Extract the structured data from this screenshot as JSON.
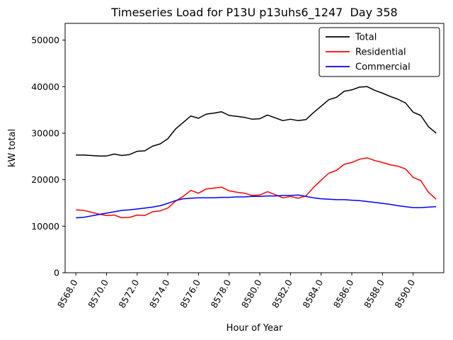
{
  "chart_data": {
    "type": "line",
    "title": "Timeseries Load for P13U p13uhs6_1247  Day 358",
    "xlabel": "Hour of Year",
    "ylabel": "kW total",
    "grid": false,
    "legend_position": "upper right",
    "xlim": [
      8567.3,
      8592.0
    ],
    "ylim": [
      0,
      53600
    ],
    "xticks": [
      8568,
      8570,
      8572,
      8574,
      8576,
      8578,
      8580,
      8582,
      8584,
      8586,
      8588,
      8590
    ],
    "xtick_labels": [
      "8568.0",
      "8570.0",
      "8572.0",
      "8574.0",
      "8576.0",
      "8578.0",
      "8580.0",
      "8582.0",
      "8584.0",
      "8586.0",
      "8588.0",
      "8590.0"
    ],
    "yticks": [
      0,
      10000,
      20000,
      30000,
      40000,
      50000
    ],
    "ytick_labels": [
      "0",
      "10000",
      "20000",
      "30000",
      "40000",
      "50000"
    ],
    "x": [
      8568.0,
      8568.5,
      8569.0,
      8569.5,
      8570.0,
      8570.5,
      8571.0,
      8571.5,
      8572.0,
      8572.5,
      8573.0,
      8573.5,
      8574.0,
      8574.5,
      8575.0,
      8575.5,
      8576.0,
      8576.5,
      8577.0,
      8577.5,
      8578.0,
      8578.5,
      8579.0,
      8579.5,
      8580.0,
      8580.5,
      8581.0,
      8581.5,
      8582.0,
      8582.5,
      8583.0,
      8583.5,
      8584.0,
      8584.5,
      8585.0,
      8585.5,
      8586.0,
      8586.5,
      8587.0,
      8587.5,
      8588.0,
      8588.5,
      8589.0,
      8589.5,
      8590.0,
      8590.5,
      8591.0,
      8591.5
    ],
    "series": [
      {
        "name": "Total",
        "color": "#000000",
        "values": [
          25300,
          25300,
          25200,
          25100,
          25100,
          25500,
          25200,
          25400,
          26100,
          26200,
          27200,
          27700,
          28800,
          30900,
          32300,
          33700,
          33200,
          34100,
          34300,
          34600,
          33800,
          33600,
          33400,
          33000,
          33100,
          33900,
          33300,
          32700,
          33000,
          32700,
          32900,
          34400,
          35800,
          37200,
          37700,
          39000,
          39300,
          39900,
          40000,
          39200,
          38600,
          37900,
          37300,
          36500,
          34500,
          33800,
          31400,
          30000
        ]
      },
      {
        "name": "Residential",
        "color": "#ff0000",
        "values": [
          13500,
          13400,
          13000,
          12600,
          12300,
          12400,
          11800,
          11900,
          12400,
          12300,
          13100,
          13300,
          13900,
          15400,
          16400,
          17700,
          17100,
          18000,
          18200,
          18400,
          17600,
          17300,
          17100,
          16600,
          16700,
          17400,
          16800,
          16100,
          16400,
          16000,
          16500,
          18300,
          19900,
          21400,
          22000,
          23300,
          23700,
          24400,
          24700,
          24100,
          23700,
          23200,
          22900,
          22300,
          20500,
          19800,
          17300,
          15800
        ]
      },
      {
        "name": "Commercial",
        "color": "#0000ff",
        "values": [
          11800,
          11900,
          12200,
          12500,
          12800,
          13100,
          13400,
          13500,
          13700,
          13900,
          14100,
          14400,
          14900,
          15500,
          15900,
          16000,
          16100,
          16100,
          16100,
          16200,
          16200,
          16300,
          16300,
          16400,
          16400,
          16500,
          16500,
          16600,
          16600,
          16700,
          16400,
          16100,
          15900,
          15800,
          15700,
          15700,
          15600,
          15500,
          15300,
          15100,
          14900,
          14700,
          14400,
          14200,
          14000,
          14000,
          14100,
          14200
        ]
      }
    ]
  }
}
